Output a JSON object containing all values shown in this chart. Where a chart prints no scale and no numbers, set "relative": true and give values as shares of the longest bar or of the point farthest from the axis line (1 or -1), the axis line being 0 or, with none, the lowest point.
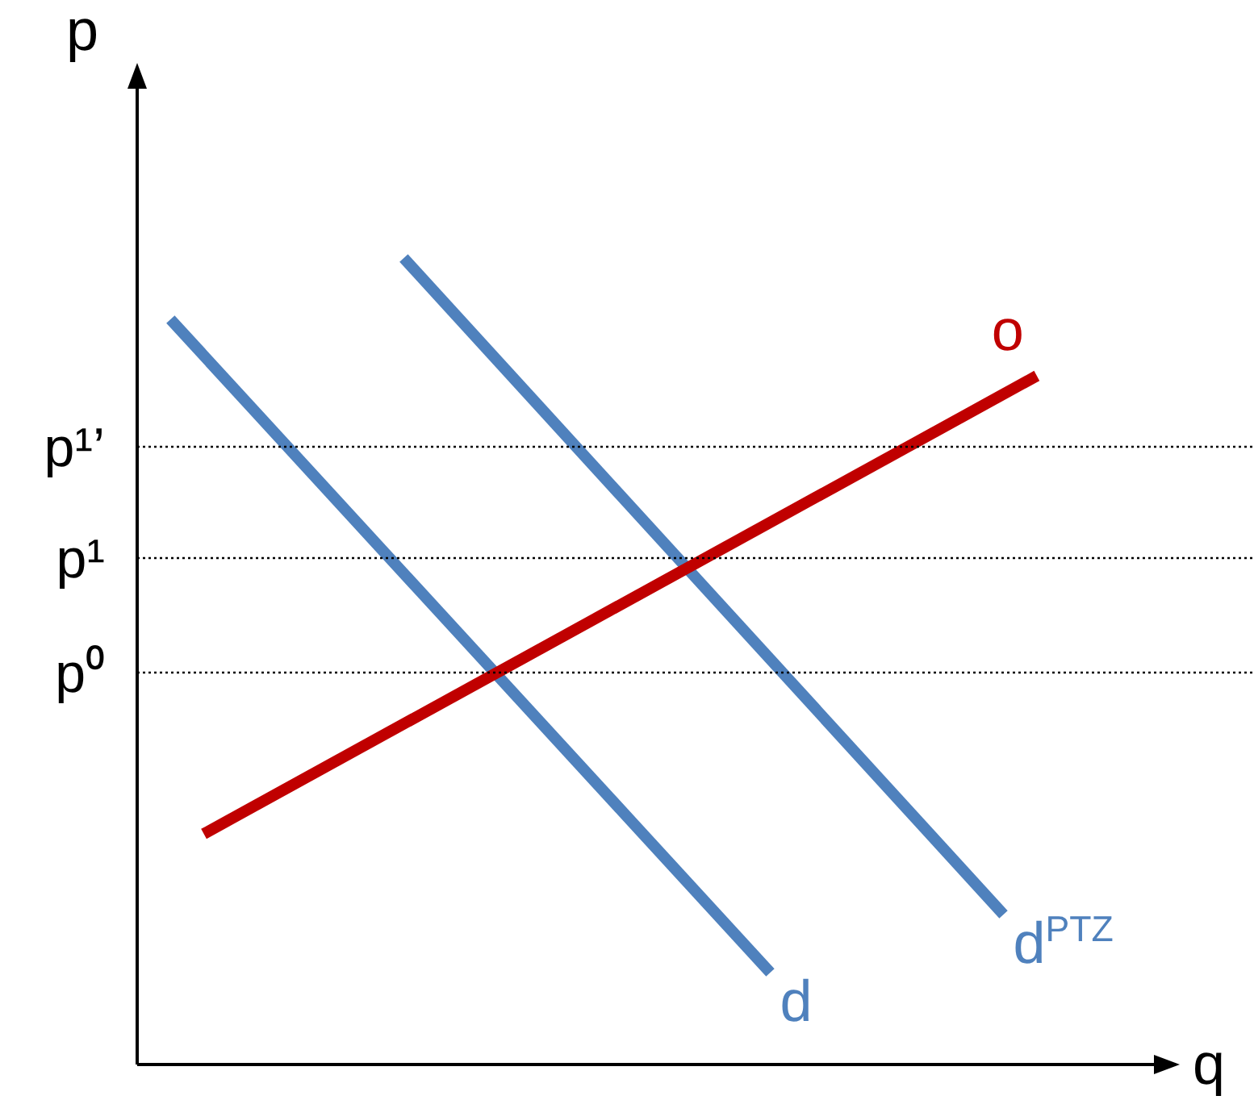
{
  "chart_data": {
    "type": "line",
    "relative": true,
    "xlabel": "q",
    "ylabel": "p",
    "categories": [
      null,
      null,
      null,
      null,
      null,
      null,
      null,
      null,
      null,
      null,
      null,
      null,
      null,
      null,
      null,
      null,
      null,
      null,
      null,
      null,
      null,
      null,
      null,
      null,
      null,
      null,
      null,
      null,
      null,
      null,
      null,
      null
    ],
    "series": [
      {
        "name": "o",
        "color": "#c00000",
        "values": [
          null,
          null,
          0.286,
          null,
          null,
          null,
          null,
          null,
          null,
          null,
          null,
          null,
          null,
          null,
          null,
          null,
          null,
          null,
          null,
          null,
          null,
          null,
          null,
          null,
          null,
          null,
          null,
          0.854,
          null,
          null,
          null,
          null
        ]
      },
      {
        "name": "d",
        "color": "#4f81bd",
        "values": [
          null,
          0.924,
          null,
          null,
          null,
          null,
          null,
          null,
          null,
          null,
          null,
          null,
          null,
          null,
          null,
          null,
          null,
          null,
          null,
          0.114,
          null,
          null,
          null,
          null,
          null,
          null,
          null,
          null,
          null,
          null,
          null,
          null
        ]
      },
      {
        "name": "d$^{PTZ}$",
        "color": "#4f81bd",
        "values": [
          null,
          null,
          null,
          null,
          null,
          null,
          null,
          null,
          1,
          null,
          null,
          null,
          null,
          null,
          null,
          null,
          null,
          null,
          null,
          null,
          null,
          null,
          null,
          null,
          null,
          null,
          0.186,
          null,
          null,
          null,
          null,
          null
        ]
      }
    ],
    "ref_lines": [
      {
        "axis": "y",
        "value": 0.766,
        "label": "p¹’",
        "color": "#000000",
        "line_style": "dotted"
      },
      {
        "axis": "y",
        "value": 0.628,
        "label": "p¹",
        "color": "#000000",
        "line_style": "dotted"
      },
      {
        "axis": "y",
        "value": 0.486,
        "label": "p⁰",
        "color": "#000000",
        "line_style": "dotted"
      }
    ],
    "legend": false
  }
}
